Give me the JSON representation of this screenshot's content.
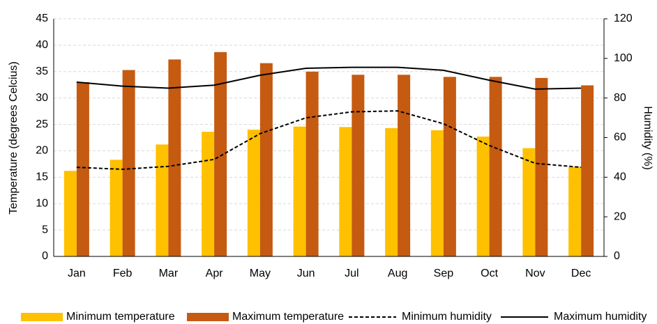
{
  "chart_data": {
    "type": "bar",
    "categories": [
      "Jan",
      "Feb",
      "Mar",
      "Apr",
      "May",
      "Jun",
      "Jul",
      "Aug",
      "Sep",
      "Oct",
      "Nov",
      "Dec"
    ],
    "ylabel": "Temperature (degrees Celcius)",
    "y2label": "Humidity (%)",
    "ylim": [
      0,
      45
    ],
    "yticks": [
      0,
      5,
      10,
      15,
      20,
      25,
      30,
      35,
      40,
      45
    ],
    "y2lim": [
      0,
      120
    ],
    "y2ticks": [
      0,
      20,
      40,
      60,
      80,
      100,
      120
    ],
    "grid": true,
    "legend": "bottom",
    "series": [
      {
        "name": "Minimum temperature",
        "type": "bar",
        "color": "#ffc000",
        "values": [
          16.2,
          18.3,
          21.2,
          23.6,
          24.0,
          24.6,
          24.5,
          24.3,
          23.9,
          22.7,
          20.5,
          17.0
        ]
      },
      {
        "name": "Maximum temperature",
        "type": "bar",
        "color": "#c55a11",
        "values": [
          33.0,
          35.3,
          37.3,
          38.7,
          36.6,
          35.0,
          34.4,
          34.4,
          34.0,
          34.0,
          33.8,
          32.4
        ]
      },
      {
        "name": "Minimum humidity",
        "type": "line",
        "axis": "y2",
        "line_style": "dashed",
        "color": "#000000",
        "values": [
          45,
          44,
          45.5,
          49,
          62,
          70,
          73,
          73.5,
          67,
          56,
          47,
          45
        ]
      },
      {
        "name": "Maximum humidity",
        "type": "line",
        "axis": "y2",
        "line_style": "solid",
        "color": "#000000",
        "values": [
          88,
          86,
          85,
          86.5,
          91.5,
          95,
          95.5,
          95.5,
          94,
          89,
          84.5,
          85
        ]
      }
    ]
  }
}
